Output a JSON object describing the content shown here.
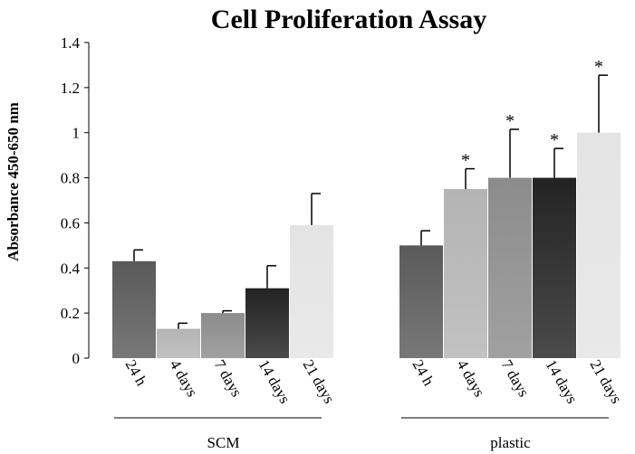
{
  "chart_data": {
    "type": "bar",
    "title": "Cell Proliferation Assay",
    "ylabel": "Absorbance 450-650 nm",
    "xlabel": "",
    "ylim": [
      0,
      1.4
    ],
    "yticks": [
      "0",
      "0.2",
      "0.4",
      "0.6",
      "0.8",
      "1",
      "1.2",
      "1.4"
    ],
    "grid": false,
    "legend": "none",
    "groups": [
      {
        "name": "SCM",
        "bars": [
          {
            "label": "24 h",
            "value": 0.43,
            "error": 0.05,
            "significant": false,
            "color": "#5a5a5a"
          },
          {
            "label": "4 days",
            "value": 0.13,
            "error": 0.025,
            "significant": false,
            "color": "#b4b4b4"
          },
          {
            "label": "7 days",
            "value": 0.2,
            "error": 0.01,
            "significant": false,
            "color": "#8c8c8c"
          },
          {
            "label": "14 days",
            "value": 0.31,
            "error": 0.1,
            "significant": false,
            "color": "#232323"
          },
          {
            "label": "21 days",
            "value": 0.59,
            "error": 0.14,
            "significant": false,
            "color": "#e4e4e4"
          }
        ]
      },
      {
        "name": "plastic",
        "bars": [
          {
            "label": "24 h",
            "value": 0.5,
            "error": 0.065,
            "significant": false,
            "color": "#5a5a5a"
          },
          {
            "label": "4 days",
            "value": 0.75,
            "error": 0.09,
            "significant": true,
            "color": "#b4b4b4"
          },
          {
            "label": "7 days",
            "value": 0.8,
            "error": 0.215,
            "significant": true,
            "color": "#8c8c8c"
          },
          {
            "label": "14 days",
            "value": 0.8,
            "error": 0.13,
            "significant": true,
            "color": "#232323"
          },
          {
            "label": "21 days",
            "value": 1.0,
            "error": 0.255,
            "significant": true,
            "color": "#e4e4e4"
          }
        ]
      }
    ],
    "significance_marker": "*"
  }
}
